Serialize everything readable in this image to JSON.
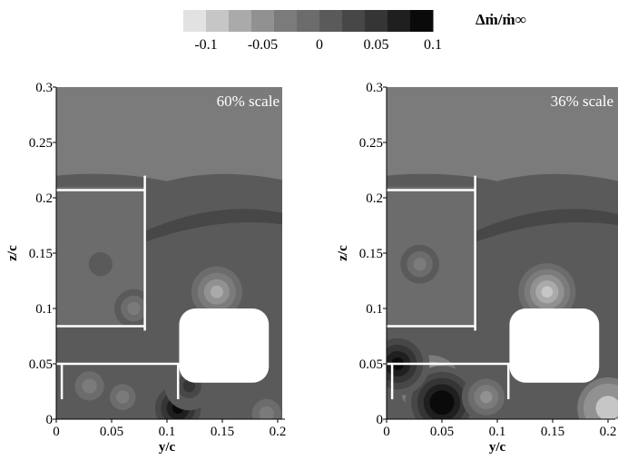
{
  "colorbar": {
    "title": "Δṁ/ṁ∞",
    "levels": [
      -0.12,
      -0.1,
      -0.08,
      -0.06,
      -0.04,
      -0.02,
      0,
      0.02,
      0.04,
      0.06,
      0.08,
      0.1,
      0.12
    ],
    "colors": [
      "#e2e2e2",
      "#c6c6c6",
      "#aaaaaa",
      "#919191",
      "#7b7b7b",
      "#6c6c6c",
      "#5a5a5a",
      "#474747",
      "#353535",
      "#1f1f1f",
      "#0a0a0a"
    ],
    "tick_labels": [
      "-0.1",
      "-0.05",
      "0",
      "0.05",
      "0.1"
    ],
    "tick_values": [
      -0.1,
      -0.05,
      0,
      0.05,
      0.1
    ]
  },
  "chart_data": [
    {
      "type": "heatmap",
      "label": "60% scale",
      "xlabel": "y/c",
      "ylabel": "z/c",
      "xlim": [
        0,
        0.2
      ],
      "ylim": [
        0,
        0.3
      ],
      "x_ticks": [
        "0",
        "0.05",
        "0.1",
        "0.15",
        "0.2"
      ],
      "y_ticks": [
        "0",
        "0.05",
        "0.1",
        "0.15",
        "0.2",
        "0.25",
        "0.3"
      ],
      "background_value": 0,
      "features": [
        {
          "x": 0.04,
          "y": 0.14,
          "value": 0.0
        },
        {
          "x": 0.07,
          "y": 0.1,
          "value": -0.03
        },
        {
          "x": 0.03,
          "y": 0.03,
          "value": -0.04
        },
        {
          "x": 0.06,
          "y": 0.02,
          "value": -0.03
        },
        {
          "x": 0.11,
          "y": 0.01,
          "value": 0.09
        },
        {
          "x": 0.145,
          "y": 0.115,
          "value": -0.08
        },
        {
          "x": 0.12,
          "y": 0.03,
          "value": 0.05
        },
        {
          "x": 0.19,
          "y": 0.005,
          "value": -0.04
        }
      ]
    },
    {
      "type": "heatmap",
      "label": "36% scale",
      "xlabel": "y/c",
      "ylabel": "z/c",
      "xlim": [
        0,
        0.2
      ],
      "ylim": [
        0,
        0.3
      ],
      "x_ticks": [
        "0",
        "0.05",
        "0.1",
        "0.15",
        "0.2"
      ],
      "y_ticks": [
        "0",
        "0.05",
        "0.1",
        "0.15",
        "0.2",
        "0.25",
        "0.3"
      ],
      "background_value": 0,
      "features": [
        {
          "x": 0.03,
          "y": 0.14,
          "value": -0.03
        },
        {
          "x": 0.04,
          "y": 0.03,
          "value": -0.1
        },
        {
          "x": 0.05,
          "y": 0.015,
          "value": 0.1
        },
        {
          "x": 0.01,
          "y": 0.05,
          "value": 0.08
        },
        {
          "x": 0.145,
          "y": 0.115,
          "value": -0.09
        },
        {
          "x": 0.2,
          "y": 0.01,
          "value": -0.1
        },
        {
          "x": 0.09,
          "y": 0.02,
          "value": -0.05
        }
      ]
    }
  ]
}
